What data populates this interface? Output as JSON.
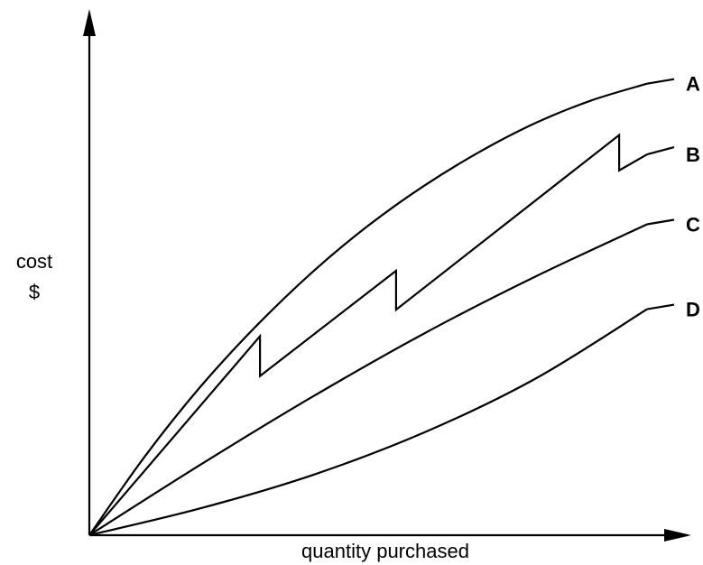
{
  "chart_data": {
    "type": "line",
    "title": "",
    "xlabel": "quantity purchased",
    "ylabel_line1": "cost",
    "ylabel_line2": "$",
    "xlim": [
      0,
      100
    ],
    "ylim": [
      0,
      100
    ],
    "grid": false,
    "axis_tick_labels": false,
    "legend": "series labels at right end of each line",
    "colors": {
      "line": "#000000",
      "background": "#ffffff"
    },
    "series": [
      {
        "name": "A",
        "label_style": "curve",
        "points": [
          [
            0,
            0
          ],
          [
            10,
            17.9
          ],
          [
            20,
            33.7
          ],
          [
            30,
            47.4
          ],
          [
            40,
            59.5
          ],
          [
            50,
            70
          ],
          [
            60,
            79
          ],
          [
            70,
            86.7
          ],
          [
            80,
            93.2
          ],
          [
            90,
            98.3
          ],
          [
            100,
            102.1
          ]
        ]
      },
      {
        "name": "B",
        "label_style": "polyline",
        "points": [
          [
            0,
            0
          ],
          [
            30.6,
            45
          ],
          [
            30.6,
            36
          ],
          [
            55,
            59.8
          ],
          [
            55,
            51
          ],
          [
            95,
            90.5
          ],
          [
            95,
            82.5
          ],
          [
            100,
            86.1
          ]
        ]
      },
      {
        "name": "C",
        "label_style": "curve",
        "points": [
          [
            0,
            0
          ],
          [
            20,
            16
          ],
          [
            40,
            31.3
          ],
          [
            60,
            45.6
          ],
          [
            80,
            58.5
          ],
          [
            100,
            70.3
          ]
        ]
      },
      {
        "name": "D",
        "label_style": "curve",
        "points": [
          [
            0,
            0
          ],
          [
            20,
            6.1
          ],
          [
            40,
            13.6
          ],
          [
            60,
            23.2
          ],
          [
            80,
            35.4
          ],
          [
            100,
            51.1
          ]
        ]
      }
    ]
  }
}
